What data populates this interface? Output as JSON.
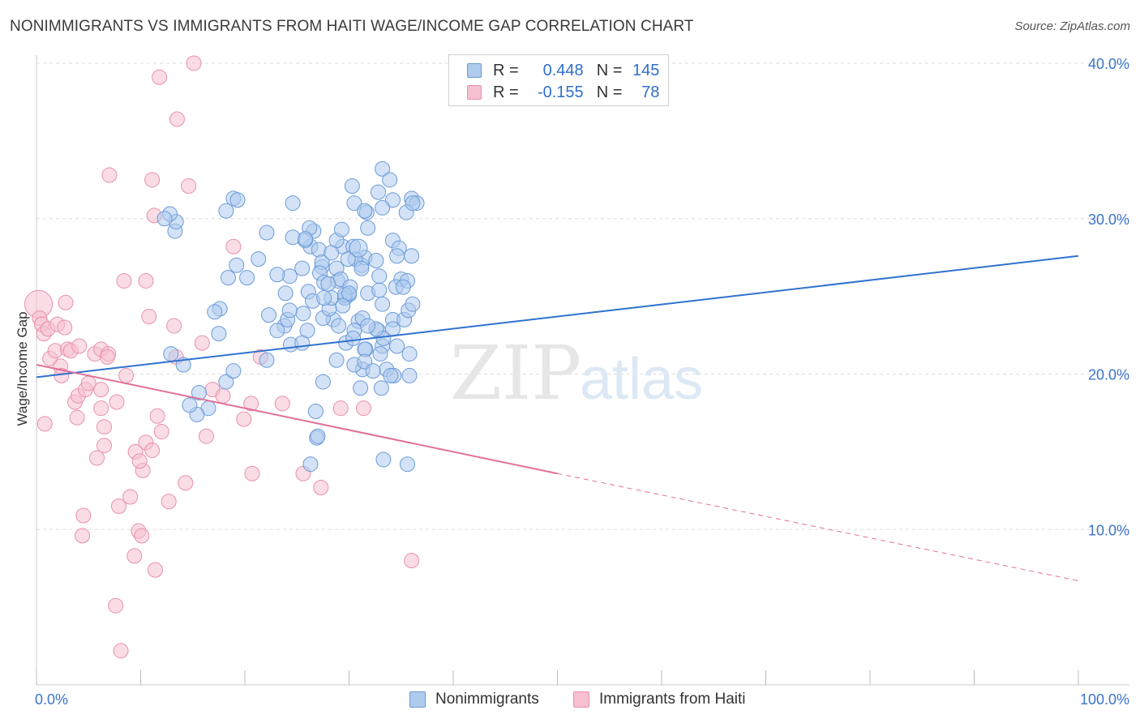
{
  "header": {
    "title": "NONIMMIGRANTS VS IMMIGRANTS FROM HAITI WAGE/INCOME GAP CORRELATION CHART",
    "source": "Source: ZipAtlas.com"
  },
  "legend": {
    "rows": [
      {
        "r_label": "R =",
        "r_value": "0.448",
        "n_label": "N =",
        "n_value": "145"
      },
      {
        "r_label": "R =",
        "r_value": "-0.155",
        "n_label": "N =",
        "n_value": "78"
      }
    ],
    "bottom": [
      "Nonimmigrants",
      "Immigrants from Haiti"
    ]
  },
  "watermark": {
    "zip": "ZIP",
    "atlas": "atlas"
  },
  "colors": {
    "blue_fill": "#aecbee",
    "blue_stroke": "#6b9bd8",
    "blue_line": "#2f72d0",
    "pink_fill": "#f6c0d0",
    "pink_stroke": "#e890ac",
    "pink_line": "#e0709a",
    "grid": "#dddddd",
    "tick_label": "#3b74c9"
  },
  "chart_data": {
    "type": "scatter",
    "title": "NONIMMIGRANTS VS IMMIGRANTS FROM HAITI WAGE/INCOME GAP CORRELATION CHART",
    "xlabel": "",
    "ylabel": "Wage/Income Gap",
    "xlim": [
      0,
      100
    ],
    "ylim": [
      0,
      40
    ],
    "x_tick_labels": [
      "0.0%",
      "100.0%"
    ],
    "y_ticks": [
      10,
      20,
      30,
      40
    ],
    "y_tick_labels": [
      "10.0%",
      "20.0%",
      "30.0%",
      "40.0%"
    ],
    "grid": true,
    "legend_position": "top-center",
    "series": [
      {
        "name": "Nonimmigrants",
        "r": 0.448,
        "n": 145,
        "trend": {
          "x": [
            0,
            100
          ],
          "y": [
            19.8,
            27.6
          ],
          "style": "solid"
        },
        "points": [
          [
            21.3,
            27.4
          ],
          [
            22.1,
            29.1
          ],
          [
            26.3,
            28.2
          ],
          [
            24.6,
            31.0
          ],
          [
            29.4,
            28.2
          ],
          [
            26.6,
            29.2
          ],
          [
            27.1,
            28.0
          ],
          [
            25.6,
            23.9
          ],
          [
            28.5,
            23.5
          ],
          [
            23.8,
            23.1
          ],
          [
            24.1,
            23.5
          ],
          [
            28.8,
            20.9
          ],
          [
            22.1,
            20.9
          ],
          [
            27.5,
            19.5
          ],
          [
            26.8,
            17.6
          ],
          [
            26.3,
            14.2
          ],
          [
            33.2,
            33.2
          ],
          [
            30.3,
            32.1
          ],
          [
            30.5,
            31.0
          ],
          [
            35.0,
            26.1
          ],
          [
            34.5,
            25.6
          ],
          [
            33.2,
            24.5
          ],
          [
            33.2,
            21.8
          ],
          [
            31.2,
            27.0
          ],
          [
            31.5,
            27.5
          ],
          [
            30.0,
            25.1
          ],
          [
            29.6,
            24.9
          ],
          [
            34.2,
            23.5
          ],
          [
            34.6,
            21.8
          ],
          [
            33.6,
            20.3
          ],
          [
            35.8,
            21.3
          ],
          [
            34.3,
            19.9
          ],
          [
            35.8,
            19.9
          ],
          [
            35.6,
            14.2
          ],
          [
            33.3,
            14.5
          ],
          [
            13.3,
            29.2
          ],
          [
            13.4,
            29.8
          ],
          [
            12.8,
            30.3
          ],
          [
            18.9,
            31.3
          ],
          [
            19.3,
            31.2
          ],
          [
            12.9,
            21.3
          ],
          [
            15.6,
            18.8
          ],
          [
            16.5,
            17.8
          ],
          [
            15.4,
            17.4
          ],
          [
            14.7,
            18.0
          ],
          [
            18.2,
            19.5
          ],
          [
            18.9,
            20.2
          ],
          [
            17.6,
            24.2
          ],
          [
            17.1,
            24.0
          ],
          [
            18.2,
            30.5
          ],
          [
            12.3,
            30.0
          ],
          [
            14.1,
            20.6
          ],
          [
            17.5,
            22.6
          ],
          [
            19.2,
            27.0
          ],
          [
            20.2,
            26.2
          ],
          [
            18.4,
            26.2
          ],
          [
            24.3,
            26.3
          ],
          [
            26.2,
            29.4
          ],
          [
            25.5,
            26.8
          ],
          [
            27.4,
            26.9
          ],
          [
            24.4,
            21.9
          ],
          [
            26.1,
            25.3
          ],
          [
            27.4,
            27.2
          ],
          [
            22.3,
            23.8
          ],
          [
            28.9,
            26.0
          ],
          [
            27.2,
            26.5
          ],
          [
            28.8,
            26.8
          ],
          [
            23.1,
            22.8
          ],
          [
            24.3,
            24.1
          ],
          [
            26.0,
            22.8
          ],
          [
            25.5,
            22.0
          ],
          [
            27.5,
            23.6
          ],
          [
            28.1,
            24.2
          ],
          [
            23.9,
            25.2
          ],
          [
            28.3,
            24.9
          ],
          [
            30.6,
            27.4
          ],
          [
            31.8,
            25.2
          ],
          [
            29.0,
            23.1
          ],
          [
            30.9,
            23.4
          ],
          [
            29.7,
            22.0
          ],
          [
            32.8,
            22.8
          ],
          [
            33.3,
            22.3
          ],
          [
            31.6,
            21.6
          ],
          [
            31.3,
            20.3
          ],
          [
            31.1,
            19.1
          ],
          [
            25.8,
            28.6
          ],
          [
            23.1,
            26.4
          ],
          [
            24.6,
            28.8
          ],
          [
            25.8,
            28.7
          ],
          [
            28.8,
            28.6
          ],
          [
            30.4,
            28.2
          ],
          [
            31.8,
            29.4
          ],
          [
            32.6,
            27.3
          ],
          [
            34.2,
            28.6
          ],
          [
            31.7,
            30.4
          ],
          [
            31.5,
            30.5
          ],
          [
            34.8,
            28.1
          ],
          [
            36.0,
            31.3
          ],
          [
            36.5,
            31.0
          ],
          [
            32.8,
            31.7
          ],
          [
            34.2,
            31.2
          ],
          [
            33.9,
            32.5
          ],
          [
            33.2,
            30.7
          ],
          [
            35.5,
            30.4
          ],
          [
            36.1,
            31.0
          ],
          [
            34.6,
            27.6
          ],
          [
            36.0,
            27.6
          ],
          [
            35.6,
            26.0
          ],
          [
            35.2,
            25.6
          ],
          [
            32.9,
            25.4
          ],
          [
            31.2,
            26.8
          ],
          [
            29.2,
            26.1
          ],
          [
            29.9,
            27.4
          ],
          [
            28.3,
            27.8
          ],
          [
            29.3,
            29.3
          ],
          [
            32.9,
            26.3
          ],
          [
            29.6,
            24.9
          ],
          [
            31.3,
            23.6
          ],
          [
            27.6,
            25.9
          ],
          [
            28.0,
            25.8
          ],
          [
            30.1,
            25.6
          ],
          [
            29.6,
            25.1
          ],
          [
            30.0,
            25.2
          ],
          [
            26.5,
            24.7
          ],
          [
            27.6,
            24.9
          ],
          [
            29.4,
            24.4
          ],
          [
            30.5,
            22.8
          ],
          [
            32.6,
            22.9
          ],
          [
            34.2,
            22.9
          ],
          [
            35.3,
            23.5
          ],
          [
            35.7,
            24.1
          ],
          [
            36.1,
            24.5
          ],
          [
            30.4,
            22.3
          ],
          [
            31.8,
            23.1
          ],
          [
            31.5,
            21.6
          ],
          [
            30.5,
            20.6
          ],
          [
            31.5,
            20.8
          ],
          [
            32.3,
            20.2
          ],
          [
            33.0,
            21.3
          ],
          [
            34.0,
            19.9
          ],
          [
            33.1,
            19.1
          ],
          [
            26.9,
            15.9
          ],
          [
            27.0,
            16.0
          ],
          [
            30.9,
            28.1
          ]
        ]
      },
      {
        "name": "Immigrants from Haiti",
        "r": -0.155,
        "n": 78,
        "trend": {
          "x": [
            0,
            50,
            100
          ],
          "y": [
            20.6,
            13.6,
            6.7
          ],
          "style": "solid-then-dashed"
        },
        "points": [
          [
            0.2,
            24.5
          ],
          [
            0.3,
            23.6
          ],
          [
            0.5,
            23.2
          ],
          [
            0.7,
            22.6
          ],
          [
            1.1,
            22.9
          ],
          [
            2.0,
            23.2
          ],
          [
            2.7,
            23.0
          ],
          [
            2.8,
            24.6
          ],
          [
            1.3,
            21.0
          ],
          [
            1.8,
            21.5
          ],
          [
            3.0,
            21.6
          ],
          [
            3.3,
            21.5
          ],
          [
            4.1,
            21.8
          ],
          [
            5.6,
            21.3
          ],
          [
            6.2,
            21.6
          ],
          [
            6.9,
            21.3
          ],
          [
            6.8,
            21.1
          ],
          [
            2.3,
            20.5
          ],
          [
            2.4,
            19.9
          ],
          [
            3.7,
            18.2
          ],
          [
            4.0,
            18.6
          ],
          [
            4.7,
            19.0
          ],
          [
            5.0,
            19.4
          ],
          [
            6.2,
            19.0
          ],
          [
            6.2,
            17.8
          ],
          [
            7.7,
            18.2
          ],
          [
            3.9,
            17.2
          ],
          [
            8.6,
            19.9
          ],
          [
            0.8,
            16.8
          ],
          [
            6.5,
            16.6
          ],
          [
            10.5,
            15.6
          ],
          [
            10.2,
            13.8
          ],
          [
            9.5,
            15.0
          ],
          [
            9.9,
            14.4
          ],
          [
            12.0,
            16.3
          ],
          [
            6.5,
            15.4
          ],
          [
            5.8,
            14.6
          ],
          [
            11.1,
            15.1
          ],
          [
            11.6,
            17.3
          ],
          [
            12.7,
            11.8
          ],
          [
            9.0,
            12.1
          ],
          [
            7.9,
            11.5
          ],
          [
            9.4,
            8.3
          ],
          [
            9.8,
            9.9
          ],
          [
            10.1,
            9.6
          ],
          [
            11.4,
            7.4
          ],
          [
            4.5,
            10.9
          ],
          [
            4.4,
            9.6
          ],
          [
            7.6,
            5.1
          ],
          [
            8.1,
            2.2
          ],
          [
            10.8,
            23.7
          ],
          [
            13.2,
            23.1
          ],
          [
            15.9,
            22.0
          ],
          [
            13.4,
            21.1
          ],
          [
            16.9,
            19.0
          ],
          [
            17.9,
            18.6
          ],
          [
            19.9,
            17.1
          ],
          [
            20.6,
            18.1
          ],
          [
            16.3,
            16.0
          ],
          [
            14.3,
            13.0
          ],
          [
            20.7,
            13.6
          ],
          [
            8.4,
            26.0
          ],
          [
            10.5,
            26.0
          ],
          [
            18.9,
            28.2
          ],
          [
            11.3,
            30.2
          ],
          [
            11.1,
            32.5
          ],
          [
            14.6,
            32.1
          ],
          [
            7.0,
            32.8
          ],
          [
            13.5,
            36.4
          ],
          [
            11.8,
            39.1
          ],
          [
            15.1,
            40.0
          ],
          [
            21.5,
            21.1
          ],
          [
            23.6,
            18.1
          ],
          [
            25.6,
            13.6
          ],
          [
            27.3,
            12.7
          ],
          [
            31.4,
            17.8
          ],
          [
            29.2,
            17.8
          ],
          [
            36.0,
            8.0
          ]
        ]
      }
    ]
  }
}
